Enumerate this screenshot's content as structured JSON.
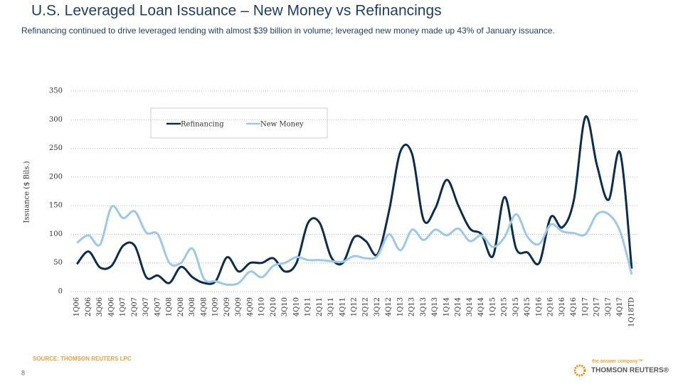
{
  "chart_data": {
    "type": "line",
    "title": "U.S. Leveraged Loan Issuance – New Money vs Refinancings",
    "subtitle": "Refinancing continued to drive leveraged lending with almost $39 billion in volume; leveraged new money made up 43% of January issuance.",
    "y_label": "Issuance ($ Bils.)",
    "categories": [
      "1Q06",
      "2Q06",
      "3Q06",
      "4Q06",
      "1Q07",
      "2Q07",
      "3Q07",
      "4Q07",
      "1Q08",
      "2Q08",
      "3Q08",
      "4Q08",
      "1Q09",
      "2Q09",
      "3Q09",
      "4Q09",
      "1Q10",
      "2Q10",
      "3Q10",
      "4Q10",
      "1Q11",
      "2Q11",
      "3Q11",
      "4Q11",
      "1Q12",
      "2Q12",
      "3Q12",
      "4Q12",
      "1Q13",
      "2Q13",
      "3Q13",
      "4Q13",
      "1Q14",
      "2Q14",
      "3Q14",
      "4Q14",
      "1Q15",
      "2Q15",
      "3Q15",
      "4Q15",
      "1Q16",
      "2Q16",
      "3Q16",
      "4Q16",
      "1Q17",
      "2Q17",
      "3Q17",
      "4Q17",
      "1Q18TD"
    ],
    "series": [
      {
        "name": "Refinancing",
        "color": "#0d2d4f",
        "values": [
          48,
          70,
          42,
          45,
          80,
          80,
          25,
          28,
          15,
          43,
          25,
          15,
          18,
          60,
          35,
          50,
          50,
          58,
          35,
          50,
          120,
          120,
          60,
          50,
          95,
          88,
          65,
          140,
          245,
          240,
          125,
          145,
          195,
          150,
          110,
          100,
          62,
          165,
          75,
          68,
          50,
          130,
          112,
          160,
          305,
          220,
          160,
          242,
          40
        ]
      },
      {
        "name": "New Money",
        "color": "#9dc8ea",
        "values": [
          85,
          98,
          82,
          148,
          128,
          140,
          103,
          100,
          50,
          50,
          75,
          22,
          18,
          12,
          15,
          35,
          25,
          45,
          50,
          60,
          55,
          55,
          53,
          52,
          62,
          58,
          62,
          100,
          72,
          108,
          90,
          108,
          98,
          110,
          88,
          98,
          78,
          95,
          135,
          95,
          83,
          117,
          105,
          102,
          100,
          135,
          135,
          105,
          30
        ]
      }
    ],
    "ylim": [
      0,
      350
    ],
    "yticks": [
      0,
      50,
      100,
      150,
      200,
      250,
      300,
      350
    ],
    "grid": true,
    "source": "SOURCE: THOMSON REUTERS LPC",
    "page_number": "8",
    "brand_tagline": "the answer company™",
    "brand": "THOMSON REUTERS®"
  }
}
